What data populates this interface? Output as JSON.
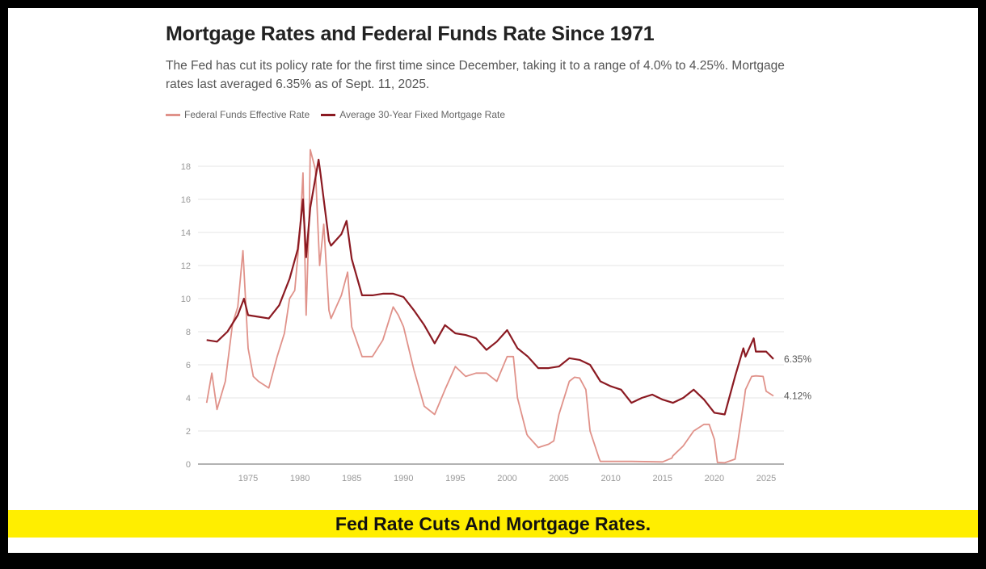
{
  "banner": {
    "caption": "Fed Rate Cuts And Mortgage Rates."
  },
  "chart_data": {
    "type": "line",
    "title": "Mortgage Rates and Federal Funds Rate Since 1971",
    "subtitle": "The Fed has cut its policy rate for the first time since December, taking it to a range of 4.0% to 4.25%. Mortgage rates last averaged 6.35% as of Sept. 11, 2025.",
    "xlabel": "",
    "ylabel": "",
    "xlim": [
      1971,
      2025.8
    ],
    "ylim": [
      0,
      20
    ],
    "x_ticks": [
      "1975",
      "1980",
      "1985",
      "1990",
      "1995",
      "2000",
      "2005",
      "2010",
      "2015",
      "2020",
      "2025"
    ],
    "y_ticks": [
      "0",
      "2",
      "4",
      "6",
      "8",
      "10",
      "12",
      "14",
      "16",
      "18"
    ],
    "grid": "horizontal",
    "legend_position": "top-left",
    "series": [
      {
        "name": "Federal Funds Effective Rate",
        "color": "#e0928a",
        "x": [
          1971,
          1971.5,
          1972,
          1972.8,
          1973.5,
          1974,
          1974.5,
          1975,
          1975.5,
          1976,
          1977,
          1977.8,
          1978.5,
          1979,
          1979.5,
          1980,
          1980.3,
          1980.6,
          1980.9,
          1981,
          1981.5,
          1981.9,
          1982.3,
          1982.8,
          1983,
          1984,
          1984.6,
          1985,
          1986,
          1987,
          1988,
          1989,
          1989.5,
          1990,
          1991,
          1992,
          1993,
          1994,
          1995,
          1996,
          1997,
          1998,
          1999,
          2000,
          2000.6,
          2001,
          2001.9,
          2002,
          2003,
          2004,
          2004.5,
          2005,
          2006,
          2006.5,
          2007,
          2007.6,
          2008,
          2008.9,
          2009,
          2012,
          2015,
          2015.9,
          2016,
          2017,
          2018,
          2019,
          2019.5,
          2020,
          2020.3,
          2021,
          2022,
          2022.3,
          2022.9,
          2023,
          2023.6,
          2024,
          2024.7,
          2025,
          2025.7
        ],
        "y": [
          3.7,
          5.5,
          3.3,
          5.0,
          8.5,
          9.5,
          12.9,
          7.0,
          5.3,
          5.0,
          4.6,
          6.5,
          7.9,
          10.0,
          10.5,
          14.0,
          17.6,
          9.0,
          15.0,
          19.0,
          17.8,
          12.0,
          14.5,
          9.3,
          8.8,
          10.2,
          11.6,
          8.3,
          6.5,
          6.5,
          7.5,
          9.5,
          9.0,
          8.3,
          5.7,
          3.5,
          3.0,
          4.5,
          5.9,
          5.3,
          5.5,
          5.5,
          5.0,
          6.5,
          6.5,
          4.0,
          1.8,
          1.7,
          1.0,
          1.2,
          1.4,
          3.0,
          5.0,
          5.25,
          5.2,
          4.5,
          2.0,
          0.3,
          0.16,
          0.16,
          0.13,
          0.36,
          0.5,
          1.1,
          2.0,
          2.4,
          2.4,
          1.5,
          0.1,
          0.08,
          0.3,
          1.5,
          4.0,
          4.5,
          5.3,
          5.33,
          5.3,
          4.4,
          4.12
        ]
      },
      {
        "name": "Average 30-Year Fixed Mortgage Rate",
        "color": "#8b1a22",
        "x": [
          1971,
          1972,
          1973,
          1974,
          1974.6,
          1975,
          1976,
          1977,
          1978,
          1979,
          1979.8,
          1980.3,
          1980.6,
          1981,
          1981.8,
          1982,
          1982.8,
          1983,
          1984,
          1984.5,
          1985,
          1986,
          1987,
          1988,
          1989,
          1990,
          1991,
          1992,
          1993,
          1994,
          1995,
          1996,
          1997,
          1998,
          1999,
          2000,
          2001,
          2002,
          2003,
          2004,
          2005,
          2006,
          2007,
          2008,
          2009,
          2010,
          2011,
          2012,
          2013,
          2014,
          2015,
          2016,
          2017,
          2018,
          2019,
          2020,
          2021,
          2022,
          2022.8,
          2023,
          2023.8,
          2024,
          2025,
          2025.7
        ],
        "y": [
          7.5,
          7.4,
          8.0,
          9.0,
          10.0,
          9.0,
          8.9,
          8.8,
          9.6,
          11.2,
          13.0,
          16.0,
          12.5,
          15.5,
          18.4,
          17.5,
          13.5,
          13.2,
          13.9,
          14.7,
          12.4,
          10.2,
          10.2,
          10.3,
          10.3,
          10.1,
          9.3,
          8.4,
          7.3,
          8.4,
          7.9,
          7.8,
          7.6,
          6.9,
          7.4,
          8.1,
          7.0,
          6.5,
          5.8,
          5.8,
          5.9,
          6.4,
          6.3,
          6.0,
          5.0,
          4.7,
          4.5,
          3.7,
          4.0,
          4.2,
          3.9,
          3.7,
          4.0,
          4.5,
          3.9,
          3.1,
          3.0,
          5.3,
          7.0,
          6.5,
          7.6,
          6.8,
          6.8,
          6.35
        ]
      }
    ],
    "annotations": [
      "6.35%",
      "4.12%"
    ]
  }
}
